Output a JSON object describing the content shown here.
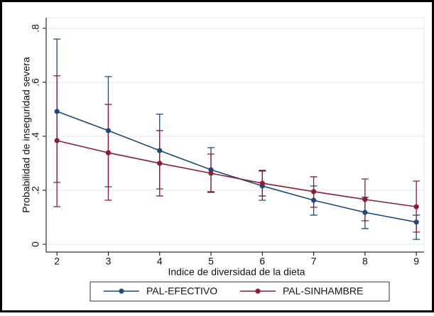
{
  "chart_data": {
    "type": "line",
    "x_label": "Indice de diversidad de la dieta",
    "y_label": "Probabilidad de inseguridad severa",
    "x": [
      2,
      3,
      4,
      5,
      6,
      7,
      8,
      9
    ],
    "series": [
      {
        "name": "PAL-EFECTIVO",
        "color": "#1d4a78",
        "values": [
          0.492,
          0.421,
          0.347,
          0.276,
          0.216,
          0.163,
          0.118,
          0.082
        ],
        "ci_low": [
          0.229,
          0.213,
          0.205,
          0.195,
          0.163,
          0.108,
          0.058,
          0.018
        ],
        "ci_high": [
          0.76,
          0.621,
          0.482,
          0.358,
          0.274,
          0.216,
          0.174,
          0.108
        ]
      },
      {
        "name": "PAL-SINHAMBRE",
        "color": "#8c1c34",
        "values": [
          0.384,
          0.339,
          0.3,
          0.263,
          0.226,
          0.195,
          0.166,
          0.139
        ],
        "ci_low": [
          0.139,
          0.163,
          0.179,
          0.192,
          0.179,
          0.137,
          0.087,
          0.045
        ],
        "ci_high": [
          0.624,
          0.518,
          0.421,
          0.334,
          0.271,
          0.25,
          0.242,
          0.234
        ]
      }
    ],
    "xlim": [
      1.79,
      9.15
    ],
    "xticks": [
      2,
      3,
      4,
      5,
      6,
      7,
      8,
      9
    ],
    "ylim": [
      -0.029,
      0.839
    ],
    "yticks": [
      {
        "value": 0,
        "label": "0"
      },
      {
        "value": 0.2,
        "label": ".2"
      },
      {
        "value": 0.4,
        "label": ".4"
      },
      {
        "value": 0.6,
        "label": ".6"
      },
      {
        "value": 0.8,
        "label": ".8"
      }
    ],
    "grid": true
  }
}
